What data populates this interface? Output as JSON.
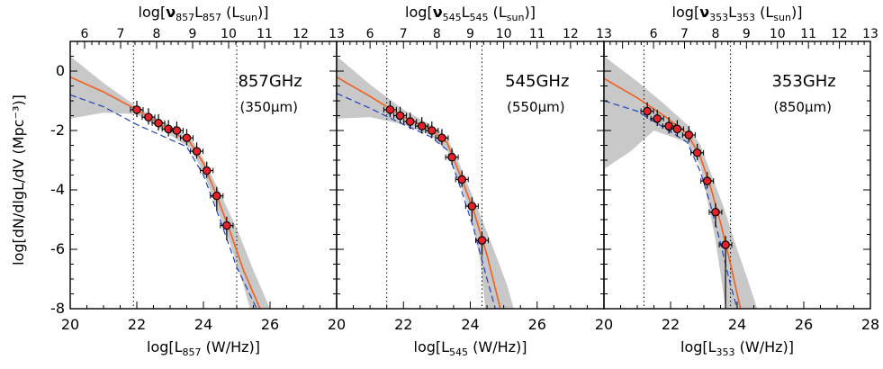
{
  "figure": {
    "ylabel": "log[dN/dlgL/dV (Mpc⁻³)]"
  },
  "chart_data": [
    {
      "type": "scatter",
      "freq_label": "857GHz",
      "wave_label": "(350μm)",
      "xlabel": "log[L857 (W/Hz)]",
      "xlabel_main": "log[L",
      "xlabel_sub": "857",
      "xlabel_tail": " (W/Hz)]",
      "toplabel_pre": "log[",
      "toplabel_nu": "ν",
      "toplabel_sub": "857",
      "toplabel_mid": "L",
      "toplabel_sub2": "857",
      "toplabel_post": " (L",
      "toplabel_sun": "sun",
      "toplabel_end": ")]",
      "xlim": [
        20,
        28
      ],
      "ylim": [
        -8,
        1
      ],
      "xticks": [
        20,
        22,
        24,
        26
      ],
      "toplim": [
        5.6,
        13
      ],
      "topticks": [
        6,
        7,
        8,
        9,
        10,
        11,
        12,
        13
      ],
      "yticks": [
        0,
        -2,
        -4,
        -6,
        -8
      ],
      "vlines": [
        21.9,
        25.0
      ],
      "points": [
        {
          "x": 22.0,
          "y": -1.3
        },
        {
          "x": 22.35,
          "y": -1.55
        },
        {
          "x": 22.65,
          "y": -1.75
        },
        {
          "x": 22.95,
          "y": -1.95
        },
        {
          "x": 23.2,
          "y": -2.0
        },
        {
          "x": 23.5,
          "y": -2.25
        },
        {
          "x": 23.8,
          "y": -2.7
        },
        {
          "x": 24.1,
          "y": -3.35
        },
        {
          "x": 24.4,
          "y": -4.2
        },
        {
          "x": 24.7,
          "y": -5.2
        }
      ],
      "fit_solid": [
        [
          20,
          -0.2
        ],
        [
          21,
          -0.7
        ],
        [
          22,
          -1.3
        ],
        [
          23,
          -2.0
        ],
        [
          23.6,
          -2.4
        ],
        [
          24.0,
          -3.1
        ],
        [
          24.4,
          -4.2
        ],
        [
          24.8,
          -5.4
        ],
        [
          25.2,
          -6.7
        ],
        [
          25.7,
          -8.0
        ]
      ],
      "fit_dashed": [
        [
          20,
          -0.8
        ],
        [
          21,
          -1.2
        ],
        [
          22,
          -1.8
        ],
        [
          23,
          -2.3
        ],
        [
          23.5,
          -2.55
        ],
        [
          24.0,
          -3.5
        ],
        [
          24.5,
          -5.0
        ],
        [
          25.0,
          -6.6
        ],
        [
          25.6,
          -8.0
        ]
      ],
      "band_upper": [
        [
          20,
          0.5
        ],
        [
          21,
          -0.4
        ],
        [
          22,
          -1.2
        ],
        [
          23,
          -1.85
        ],
        [
          23.6,
          -2.2
        ],
        [
          24.0,
          -2.95
        ],
        [
          24.5,
          -4.1
        ],
        [
          25.0,
          -5.3
        ],
        [
          25.5,
          -6.7
        ],
        [
          26.0,
          -8.0
        ]
      ],
      "band_lower": [
        [
          20,
          -1.6
        ],
        [
          21,
          -1.4
        ],
        [
          22,
          -1.45
        ],
        [
          23,
          -2.15
        ],
        [
          23.6,
          -2.6
        ],
        [
          24.0,
          -3.4
        ],
        [
          24.4,
          -4.6
        ],
        [
          24.8,
          -5.8
        ],
        [
          25.2,
          -7.2
        ],
        [
          25.4,
          -8.0
        ]
      ]
    },
    {
      "type": "scatter",
      "freq_label": "545GHz",
      "wave_label": "(550μm)",
      "xlabel": "log[L545 (W/Hz)]",
      "xlabel_main": "log[L",
      "xlabel_sub": "545",
      "xlabel_tail": " (W/Hz)]",
      "toplabel_pre": "log[",
      "toplabel_nu": "ν",
      "toplabel_sub": "545",
      "toplabel_mid": "L",
      "toplabel_sub2": "545",
      "toplabel_post": " (L",
      "toplabel_sun": "sun",
      "toplabel_end": ")]",
      "xlim": [
        20,
        28
      ],
      "ylim": [
        -8,
        1
      ],
      "xticks": [
        20,
        22,
        24,
        26
      ],
      "toplim": [
        5.0,
        13
      ],
      "topticks": [
        6,
        7,
        8,
        9,
        10,
        11,
        12,
        13
      ],
      "yticks": [
        0,
        -2,
        -4,
        -6,
        -8
      ],
      "vlines": [
        21.5,
        24.35
      ],
      "points": [
        {
          "x": 21.6,
          "y": -1.3
        },
        {
          "x": 21.9,
          "y": -1.5
        },
        {
          "x": 22.2,
          "y": -1.7
        },
        {
          "x": 22.55,
          "y": -1.85
        },
        {
          "x": 22.85,
          "y": -2.0
        },
        {
          "x": 23.15,
          "y": -2.25
        },
        {
          "x": 23.45,
          "y": -2.9
        },
        {
          "x": 23.75,
          "y": -3.65
        },
        {
          "x": 24.05,
          "y": -4.55
        },
        {
          "x": 24.35,
          "y": -5.7
        }
      ],
      "fit_solid": [
        [
          20,
          -0.2
        ],
        [
          21,
          -0.85
        ],
        [
          22,
          -1.55
        ],
        [
          22.8,
          -1.95
        ],
        [
          23.3,
          -2.4
        ],
        [
          23.7,
          -3.5
        ],
        [
          24.1,
          -4.7
        ],
        [
          24.5,
          -6.2
        ],
        [
          24.9,
          -8.0
        ]
      ],
      "fit_dashed": [
        [
          20,
          -0.75
        ],
        [
          21,
          -1.25
        ],
        [
          22,
          -1.8
        ],
        [
          22.8,
          -2.2
        ],
        [
          23.3,
          -2.65
        ],
        [
          23.7,
          -3.9
        ],
        [
          24.1,
          -5.3
        ],
        [
          24.5,
          -7.0
        ],
        [
          24.75,
          -8.0
        ]
      ],
      "band_upper": [
        [
          20,
          0.5
        ],
        [
          21,
          -0.45
        ],
        [
          22,
          -1.3
        ],
        [
          22.8,
          -1.8
        ],
        [
          23.3,
          -2.2
        ],
        [
          23.7,
          -3.2
        ],
        [
          24.1,
          -4.3
        ],
        [
          24.6,
          -5.7
        ],
        [
          25.1,
          -7.2
        ],
        [
          25.3,
          -8.0
        ]
      ],
      "band_lower": [
        [
          20,
          -1.6
        ],
        [
          21,
          -1.55
        ],
        [
          22,
          -1.8
        ],
        [
          22.8,
          -2.15
        ],
        [
          23.3,
          -2.65
        ],
        [
          23.7,
          -3.8
        ],
        [
          24.0,
          -4.8
        ],
        [
          24.3,
          -6.4
        ],
        [
          24.45,
          -8.0
        ]
      ]
    },
    {
      "type": "scatter",
      "freq_label": "353GHz",
      "wave_label": "(850μm)",
      "xlabel": "log[L353 (W/Hz)]",
      "xlabel_main": "log[L",
      "xlabel_sub": "353",
      "xlabel_tail": " (W/Hz)]",
      "toplabel_pre": "log[",
      "toplabel_nu": "ν",
      "toplabel_sub": "353",
      "toplabel_mid": "L",
      "toplabel_sub2": "353",
      "toplabel_post": " (L",
      "toplabel_sun": "sun",
      "toplabel_end": ")]",
      "xlim": [
        20,
        28
      ],
      "ylim": [
        -8,
        1
      ],
      "xticks": [
        20,
        22,
        24,
        26,
        28
      ],
      "toplim": [
        4.4,
        13
      ],
      "topticks": [
        6,
        7,
        8,
        9,
        10,
        11,
        12,
        13
      ],
      "yticks": [
        0,
        -2,
        -4,
        -6,
        -8
      ],
      "vlines": [
        21.2,
        23.8
      ],
      "points": [
        {
          "x": 21.3,
          "y": -1.35
        },
        {
          "x": 21.6,
          "y": -1.6
        },
        {
          "x": 21.95,
          "y": -1.85
        },
        {
          "x": 22.2,
          "y": -1.95
        },
        {
          "x": 22.55,
          "y": -2.15
        },
        {
          "x": 22.8,
          "y": -2.75
        },
        {
          "x": 23.1,
          "y": -3.7
        },
        {
          "x": 23.35,
          "y": -4.75
        },
        {
          "x": 23.65,
          "y": -5.85
        }
      ],
      "fit_solid": [
        [
          20,
          -0.25
        ],
        [
          21,
          -0.9
        ],
        [
          21.8,
          -1.5
        ],
        [
          22.5,
          -2.1
        ],
        [
          22.9,
          -2.9
        ],
        [
          23.2,
          -3.9
        ],
        [
          23.5,
          -5.1
        ],
        [
          23.8,
          -6.5
        ],
        [
          24.1,
          -8.0
        ]
      ],
      "fit_dashed": [
        [
          20,
          -1.0
        ],
        [
          21,
          -1.35
        ],
        [
          21.8,
          -1.9
        ],
        [
          22.5,
          -2.4
        ],
        [
          22.9,
          -3.4
        ],
        [
          23.2,
          -4.5
        ],
        [
          23.5,
          -5.8
        ],
        [
          23.8,
          -7.2
        ],
        [
          24.0,
          -8.0
        ]
      ],
      "band_upper": [
        [
          20,
          0.5
        ],
        [
          21,
          -0.35
        ],
        [
          21.8,
          -1.1
        ],
        [
          22.5,
          -1.8
        ],
        [
          22.9,
          -2.5
        ],
        [
          23.2,
          -3.4
        ],
        [
          23.6,
          -4.6
        ],
        [
          24.0,
          -6.0
        ],
        [
          24.4,
          -7.3
        ],
        [
          24.6,
          -8.0
        ]
      ],
      "band_lower": [
        [
          20,
          -3.3
        ],
        [
          20.8,
          -2.7
        ],
        [
          21.5,
          -2.0
        ],
        [
          22.5,
          -2.4
        ],
        [
          22.9,
          -3.2
        ],
        [
          23.1,
          -4.3
        ],
        [
          23.35,
          -5.7
        ],
        [
          23.55,
          -7.2
        ],
        [
          23.65,
          -8.0
        ]
      ]
    }
  ],
  "colors": {
    "band": "#c8c8c8",
    "fit_solid": "#f06020",
    "fit_dashed": "#2040c0",
    "marker_fill": "#e8202a",
    "axis": "#000000"
  }
}
